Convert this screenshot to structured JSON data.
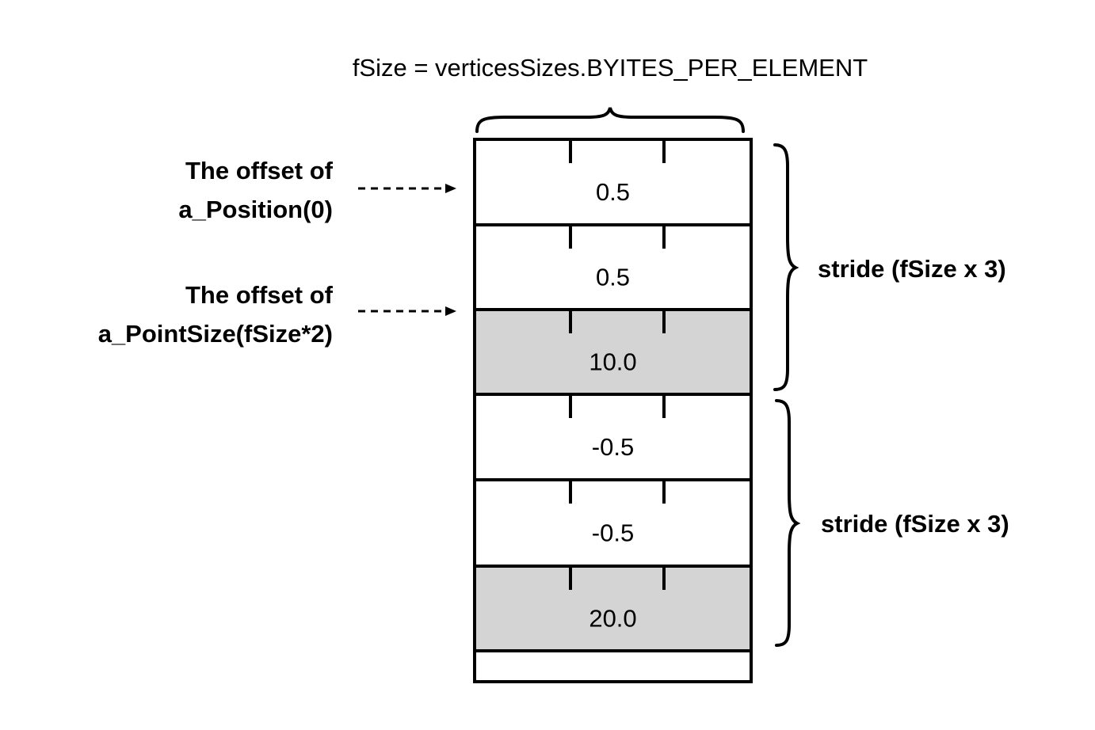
{
  "title": "fSize = verticesSizes.BYITES_PER_ELEMENT",
  "offsets": [
    {
      "line1": "The offset of",
      "line2": "a_Position(0)"
    },
    {
      "line1": "The offset of",
      "line2": "a_PointSize(fSize*2)"
    }
  ],
  "cells": [
    {
      "value": "0.5",
      "shaded": false
    },
    {
      "value": "0.5",
      "shaded": false
    },
    {
      "value": "10.0",
      "shaded": true
    },
    {
      "value": "-0.5",
      "shaded": false
    },
    {
      "value": "-0.5",
      "shaded": false
    },
    {
      "value": "20.0",
      "shaded": true
    },
    {
      "value": "",
      "shaded": false
    }
  ],
  "strides": [
    "stride (fSize x 3)",
    "stride (fSize x 3)"
  ],
  "colors": {
    "shaded_fill": "#d4d4d4",
    "line": "#000000",
    "background": "#ffffff"
  }
}
